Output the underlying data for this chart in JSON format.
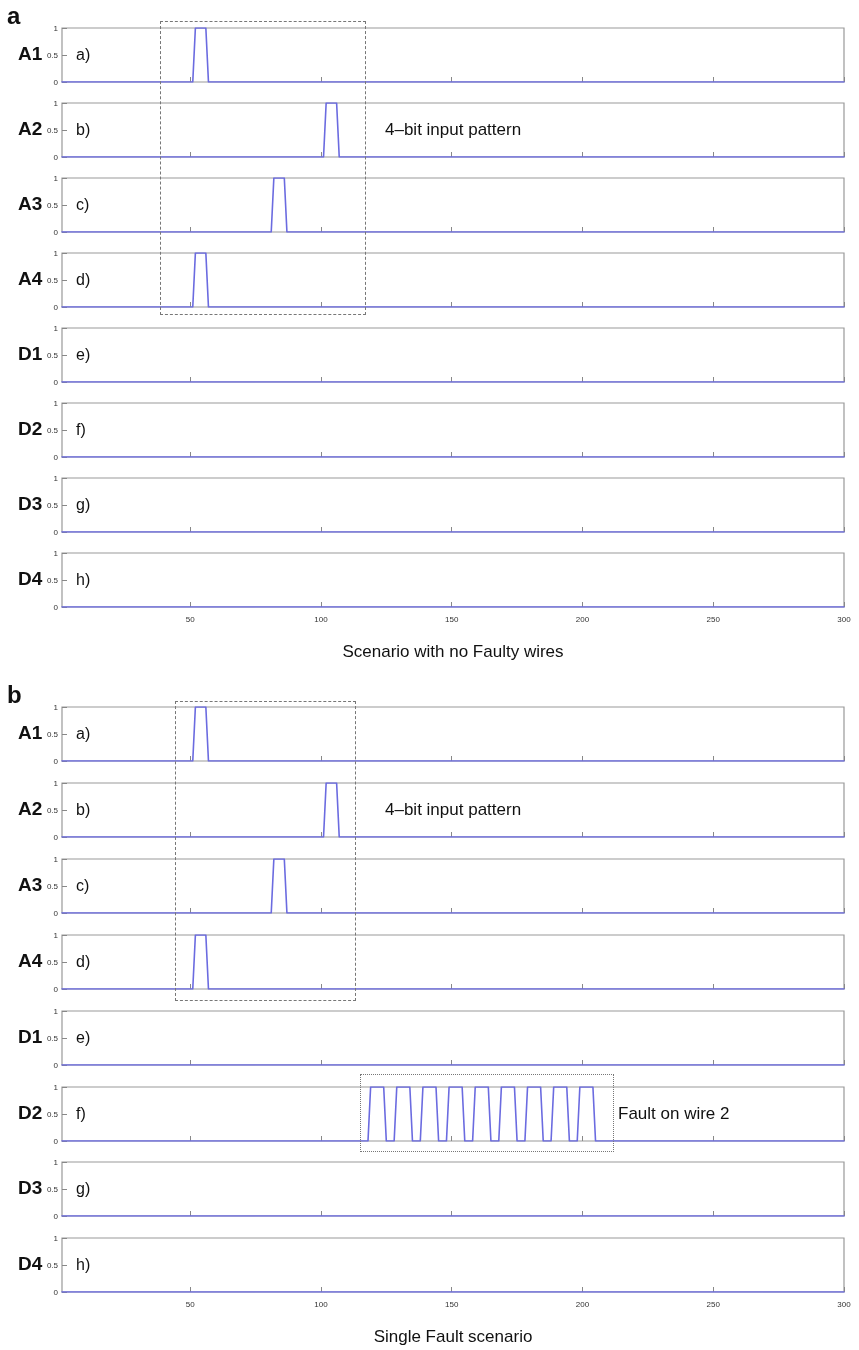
{
  "chart_data": [
    {
      "type": "line",
      "title": "a",
      "ylabel": "A1",
      "annotations": [
        "a)"
      ],
      "xlim": [
        1,
        300
      ],
      "xticks": [
        50,
        100,
        150,
        200,
        250,
        300
      ],
      "ylim": [
        0,
        1
      ],
      "yticks": [
        0,
        0.5,
        1
      ],
      "tick_labels": "y",
      "marker": "none",
      "series": [
        {
          "color": "#6b6be0",
          "x": [
            1,
            51,
            52,
            56,
            57,
            300
          ],
          "values": [
            0,
            0,
            1,
            1,
            0,
            0
          ]
        }
      ]
    },
    {
      "type": "line",
      "ylabel": "A2",
      "annotations": [
        "b)",
        "4–bit input pattern"
      ],
      "xlim": [
        1,
        300
      ],
      "xticks": [
        50,
        100,
        150,
        200,
        250,
        300
      ],
      "ylim": [
        0,
        1
      ],
      "yticks": [
        0,
        0.5,
        1
      ],
      "tick_labels": "y",
      "marker": "none",
      "series": [
        {
          "color": "#6b6be0",
          "x": [
            1,
            101,
            102,
            106,
            107,
            300
          ],
          "values": [
            0,
            0,
            1,
            1,
            0,
            0
          ]
        }
      ]
    },
    {
      "type": "line",
      "ylabel": "A3",
      "annotations": [
        "c)"
      ],
      "xlim": [
        1,
        300
      ],
      "xticks": [
        50,
        100,
        150,
        200,
        250,
        300
      ],
      "ylim": [
        0,
        1
      ],
      "yticks": [
        0,
        0.5,
        1
      ],
      "tick_labels": "y",
      "marker": "none",
      "series": [
        {
          "color": "#6b6be0",
          "x": [
            1,
            81,
            82,
            86,
            87,
            300
          ],
          "values": [
            0,
            0,
            1,
            1,
            0,
            0
          ]
        }
      ]
    },
    {
      "type": "line",
      "ylabel": "A4",
      "annotations": [
        "d)"
      ],
      "xlim": [
        1,
        300
      ],
      "xticks": [
        50,
        100,
        150,
        200,
        250,
        300
      ],
      "ylim": [
        0,
        1
      ],
      "yticks": [
        0,
        0.5,
        1
      ],
      "tick_labels": "y",
      "marker": "none",
      "series": [
        {
          "color": "#6b6be0",
          "x": [
            1,
            51,
            52,
            56,
            57,
            300
          ],
          "values": [
            0,
            0,
            1,
            1,
            0,
            0
          ]
        }
      ]
    },
    {
      "type": "line",
      "ylabel": "D1",
      "annotations": [
        "e)"
      ],
      "xlim": [
        1,
        300
      ],
      "xticks": [
        50,
        100,
        150,
        200,
        250,
        300
      ],
      "ylim": [
        0,
        1
      ],
      "yticks": [
        0,
        0.5,
        1
      ],
      "tick_labels": "y",
      "marker": "none",
      "series": [
        {
          "color": "#6b6be0",
          "x": [
            1,
            300
          ],
          "values": [
            0,
            0
          ]
        }
      ]
    },
    {
      "type": "line",
      "ylabel": "D2",
      "annotations": [
        "f)"
      ],
      "xlim": [
        1,
        300
      ],
      "xticks": [
        50,
        100,
        150,
        200,
        250,
        300
      ],
      "ylim": [
        0,
        1
      ],
      "yticks": [
        0,
        0.5,
        1
      ],
      "tick_labels": "y",
      "marker": "none",
      "series": [
        {
          "color": "#6b6be0",
          "x": [
            1,
            300
          ],
          "values": [
            0,
            0
          ]
        }
      ]
    },
    {
      "type": "line",
      "ylabel": "D3",
      "annotations": [
        "g)"
      ],
      "xlim": [
        1,
        300
      ],
      "xticks": [
        50,
        100,
        150,
        200,
        250,
        300
      ],
      "ylim": [
        0,
        1
      ],
      "yticks": [
        0,
        0.5,
        1
      ],
      "tick_labels": "y",
      "marker": "none",
      "series": [
        {
          "color": "#6b6be0",
          "x": [
            1,
            300
          ],
          "values": [
            0,
            0
          ]
        }
      ]
    },
    {
      "type": "line",
      "ylabel": "D4",
      "annotations": [
        "h)"
      ],
      "xlabel": "Scenario with no Faulty wires",
      "xlim": [
        1,
        300
      ],
      "xticks": [
        50,
        100,
        150,
        200,
        250,
        300
      ],
      "ylim": [
        0,
        1
      ],
      "yticks": [
        0,
        0.5,
        1
      ],
      "marker": "none",
      "series": [
        {
          "color": "#6b6be0",
          "x": [
            1,
            300
          ],
          "values": [
            0,
            0
          ]
        }
      ]
    },
    {
      "type": "line",
      "title": "b",
      "ylabel": "A1",
      "annotations": [
        "a)"
      ],
      "xlim": [
        1,
        300
      ],
      "xticks": [
        50,
        100,
        150,
        200,
        250,
        300
      ],
      "ylim": [
        0,
        1
      ],
      "yticks": [
        0,
        0.5,
        1
      ],
      "tick_labels": "y",
      "marker": "none",
      "series": [
        {
          "color": "#6b6be0",
          "x": [
            1,
            51,
            52,
            56,
            57,
            300
          ],
          "values": [
            0,
            0,
            1,
            1,
            0,
            0
          ]
        }
      ]
    },
    {
      "type": "line",
      "ylabel": "A2",
      "annotations": [
        "b)",
        "4–bit input pattern"
      ],
      "xlim": [
        1,
        300
      ],
      "xticks": [
        50,
        100,
        150,
        200,
        250,
        300
      ],
      "ylim": [
        0,
        1
      ],
      "yticks": [
        0,
        0.5,
        1
      ],
      "tick_labels": "y",
      "marker": "none",
      "series": [
        {
          "color": "#6b6be0",
          "x": [
            1,
            101,
            102,
            106,
            107,
            300
          ],
          "values": [
            0,
            0,
            1,
            1,
            0,
            0
          ]
        }
      ]
    },
    {
      "type": "line",
      "ylabel": "A3",
      "annotations": [
        "c)"
      ],
      "xlim": [
        1,
        300
      ],
      "xticks": [
        50,
        100,
        150,
        200,
        250,
        300
      ],
      "ylim": [
        0,
        1
      ],
      "yticks": [
        0,
        0.5,
        1
      ],
      "tick_labels": "y",
      "marker": "none",
      "series": [
        {
          "color": "#6b6be0",
          "x": [
            1,
            81,
            82,
            86,
            87,
            300
          ],
          "values": [
            0,
            0,
            1,
            1,
            0,
            0
          ]
        }
      ]
    },
    {
      "type": "line",
      "ylabel": "A4",
      "annotations": [
        "d)"
      ],
      "xlim": [
        1,
        300
      ],
      "xticks": [
        50,
        100,
        150,
        200,
        250,
        300
      ],
      "ylim": [
        0,
        1
      ],
      "yticks": [
        0,
        0.5,
        1
      ],
      "tick_labels": "y",
      "marker": "none",
      "series": [
        {
          "color": "#6b6be0",
          "x": [
            1,
            51,
            52,
            56,
            57,
            300
          ],
          "values": [
            0,
            0,
            1,
            1,
            0,
            0
          ]
        }
      ]
    },
    {
      "type": "line",
      "ylabel": "D1",
      "annotations": [
        "e)"
      ],
      "xlim": [
        1,
        300
      ],
      "xticks": [
        50,
        100,
        150,
        200,
        250,
        300
      ],
      "ylim": [
        0,
        1
      ],
      "yticks": [
        0,
        0.5,
        1
      ],
      "tick_labels": "y",
      "marker": "none",
      "series": [
        {
          "color": "#6b6be0",
          "x": [
            1,
            300
          ],
          "values": [
            0,
            0
          ]
        }
      ]
    },
    {
      "type": "line",
      "ylabel": "D2",
      "annotations": [
        "f)",
        "Fault on wire 2"
      ],
      "xlim": [
        1,
        300
      ],
      "xticks": [
        50,
        100,
        150,
        200,
        250,
        300
      ],
      "ylim": [
        0,
        1
      ],
      "yticks": [
        0,
        0.5,
        1
      ],
      "tick_labels": "y",
      "marker": "none",
      "series": [
        {
          "color": "#6b6be0",
          "x": [
            1,
            118,
            119,
            124,
            125,
            128,
            129,
            134,
            135,
            138,
            139,
            144,
            145,
            148,
            149,
            154,
            155,
            158,
            159,
            164,
            165,
            168,
            169,
            174,
            175,
            178,
            179,
            184,
            185,
            188,
            189,
            194,
            195,
            198,
            199,
            204,
            205,
            300
          ],
          "values": [
            0,
            0,
            1,
            1,
            0,
            0,
            1,
            1,
            0,
            0,
            1,
            1,
            0,
            0,
            1,
            1,
            0,
            0,
            1,
            1,
            0,
            0,
            1,
            1,
            0,
            0,
            1,
            1,
            0,
            0,
            1,
            1,
            0,
            0,
            1,
            1,
            0,
            0
          ]
        }
      ]
    },
    {
      "type": "line",
      "ylabel": "D3",
      "annotations": [
        "g)"
      ],
      "xlim": [
        1,
        300
      ],
      "xticks": [
        50,
        100,
        150,
        200,
        250,
        300
      ],
      "ylim": [
        0,
        1
      ],
      "yticks": [
        0,
        0.5,
        1
      ],
      "tick_labels": "y",
      "marker": "none",
      "series": [
        {
          "color": "#6b6be0",
          "x": [
            1,
            300
          ],
          "values": [
            0,
            0
          ]
        }
      ]
    },
    {
      "type": "line",
      "ylabel": "D4",
      "annotations": [
        "h)"
      ],
      "xlabel": "Single Fault scenario",
      "xlim": [
        1,
        300
      ],
      "xticks": [
        50,
        100,
        150,
        200,
        250,
        300
      ],
      "ylim": [
        0,
        1
      ],
      "yticks": [
        0,
        0.5,
        1
      ],
      "marker": "none",
      "series": [
        {
          "color": "#6b6be0",
          "x": [
            1,
            300
          ],
          "values": [
            0,
            0
          ]
        }
      ]
    }
  ]
}
